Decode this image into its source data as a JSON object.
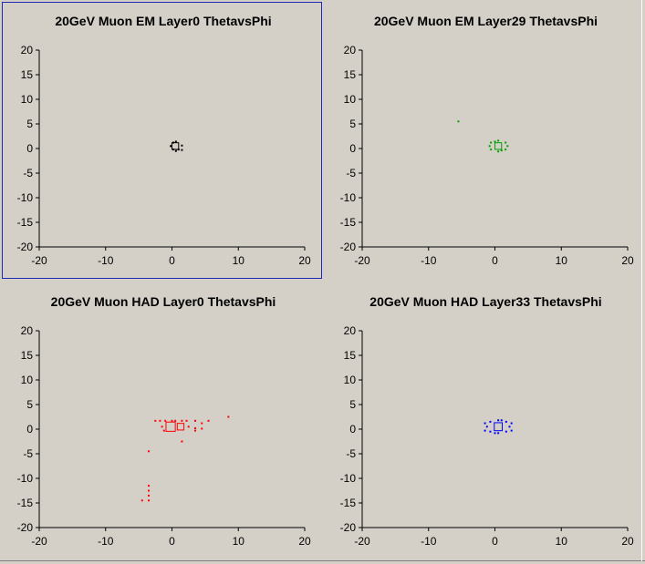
{
  "chart_data": [
    {
      "type": "scatter",
      "title": "20GeV Muon EM Layer0 ThetavsPhi",
      "xlim": [
        -20,
        20
      ],
      "ylim": [
        -20,
        20
      ],
      "xticks": [
        -20,
        -10,
        0,
        10,
        20
      ],
      "yticks": [
        -20,
        -15,
        -10,
        -5,
        0,
        5,
        10,
        15,
        20
      ],
      "color": "#000000",
      "selected": true,
      "boxes": [
        {
          "x": 0.5,
          "y": 0.5,
          "size": 1
        }
      ],
      "points": [
        [
          0.2,
          1.2
        ],
        [
          0.2,
          -0.2
        ],
        [
          1.0,
          -0.2
        ],
        [
          -0.2,
          0.5
        ],
        [
          1.5,
          0.6
        ],
        [
          0.6,
          1.4
        ],
        [
          0.6,
          -0.5
        ],
        [
          1.5,
          -0.3
        ]
      ]
    },
    {
      "type": "scatter",
      "title": "20GeV Muon EM Layer29 ThetavsPhi",
      "xlim": [
        -20,
        20
      ],
      "ylim": [
        -20,
        20
      ],
      "xticks": [
        -20,
        -10,
        0,
        10,
        20
      ],
      "yticks": [
        -20,
        -15,
        -10,
        -5,
        0,
        5,
        10,
        15,
        20
      ],
      "color": "#00a000",
      "selected": false,
      "boxes": [
        {
          "x": 0.5,
          "y": 0.5,
          "size": 1
        }
      ],
      "points": [
        [
          -5.5,
          5.5
        ],
        [
          -0.6,
          1.2
        ],
        [
          1.6,
          1.2
        ],
        [
          -0.6,
          -0.2
        ],
        [
          1.6,
          -0.2
        ],
        [
          0.5,
          1.6
        ],
        [
          0.5,
          -0.6
        ],
        [
          -0.8,
          0.5
        ],
        [
          1.9,
          0.5
        ],
        [
          0.0,
          1.4
        ],
        [
          1.0,
          -0.4
        ]
      ]
    },
    {
      "type": "scatter",
      "title": "20GeV Muon HAD Layer0 ThetavsPhi",
      "xlim": [
        -20,
        20
      ],
      "ylim": [
        -20,
        20
      ],
      "xticks": [
        -20,
        -10,
        0,
        10,
        20
      ],
      "yticks": [
        -20,
        -15,
        -10,
        -5,
        0,
        5,
        10,
        15,
        20
      ],
      "color": "#ff0000",
      "selected": false,
      "boxes": [
        {
          "x": -0.2,
          "y": 0.5,
          "size": 1.4
        },
        {
          "x": 1.3,
          "y": 0.5,
          "size": 1.0
        }
      ],
      "points": [
        [
          -2.5,
          1.7
        ],
        [
          -1.8,
          1.7
        ],
        [
          -1.0,
          1.7
        ],
        [
          0.0,
          1.7
        ],
        [
          0.5,
          1.7
        ],
        [
          1.5,
          1.7
        ],
        [
          2.2,
          1.7
        ],
        [
          3.5,
          1.7
        ],
        [
          4.5,
          1.2
        ],
        [
          5.5,
          1.7
        ],
        [
          8.5,
          2.5
        ],
        [
          -1.5,
          0.5
        ],
        [
          2.5,
          0.5
        ],
        [
          3.5,
          0.2
        ],
        [
          3.5,
          -0.3
        ],
        [
          4.5,
          0.1
        ],
        [
          -1.2,
          -0.3
        ],
        [
          1.5,
          -2.5
        ],
        [
          -3.5,
          -4.5
        ],
        [
          -3.5,
          -11.5
        ],
        [
          -3.5,
          -12.5
        ],
        [
          -3.5,
          -13.5
        ],
        [
          -3.5,
          -14.5
        ],
        [
          -4.5,
          -14.5
        ]
      ]
    },
    {
      "type": "scatter",
      "title": "20GeV Muon HAD Layer33 ThetavsPhi",
      "xlim": [
        -20,
        20
      ],
      "ylim": [
        -20,
        20
      ],
      "xticks": [
        -20,
        -10,
        0,
        10,
        20
      ],
      "yticks": [
        -20,
        -15,
        -10,
        -5,
        0,
        5,
        10,
        15,
        20
      ],
      "color": "#0000ff",
      "selected": false,
      "boxes": [
        {
          "x": 0.5,
          "y": 0.5,
          "size": 1.2
        }
      ],
      "points": [
        [
          -0.7,
          1.5
        ],
        [
          0.5,
          1.8
        ],
        [
          1.7,
          1.5
        ],
        [
          -0.7,
          -0.5
        ],
        [
          0.5,
          -0.8
        ],
        [
          1.7,
          -0.5
        ],
        [
          -1.2,
          0.5
        ],
        [
          2.2,
          0.5
        ],
        [
          -1.5,
          -0.3
        ],
        [
          2.5,
          -0.3
        ],
        [
          -1.5,
          1.2
        ],
        [
          2.5,
          1.2
        ],
        [
          0.0,
          -0.8
        ],
        [
          1.0,
          1.8
        ]
      ]
    }
  ]
}
